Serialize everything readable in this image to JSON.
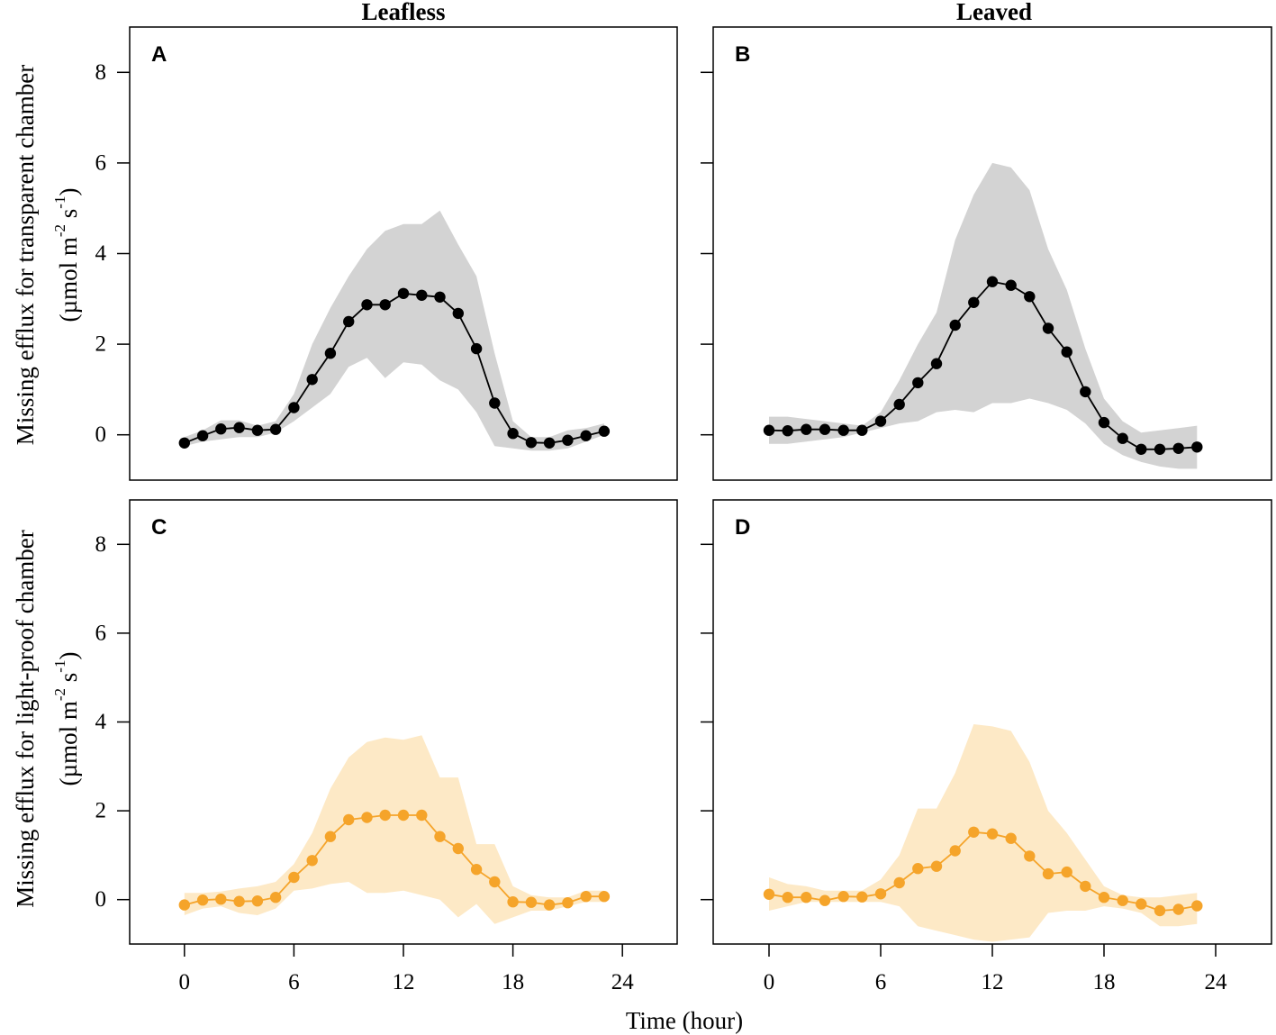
{
  "figure": {
    "col_titles": [
      "Leafless",
      "Leaved"
    ],
    "row_titles": [
      {
        "line1": "Missing efflux for transparent chamber",
        "line2": "(µmol m-2 s-1)"
      },
      {
        "line1": "Missing efflux for light-proof chamber",
        "line2": "(µmol m-2 s-1)"
      }
    ],
    "xlabel": "Time (hour)",
    "colors": {
      "black_series": "#000000",
      "black_band": "#d3d3d3",
      "orange_series": "#f5a42a",
      "orange_band": "#fde9c6"
    }
  },
  "chart_data": [
    {
      "type": "line",
      "panel": "A",
      "title": "Leafless",
      "ylabel": "Missing efflux for transparent chamber (µmol m-2 s-1)",
      "xlabel": "",
      "xlim": [
        -3,
        27
      ],
      "ylim": [
        -1,
        9
      ],
      "xticks": [
        0,
        6,
        12,
        18,
        24
      ],
      "yticks": [
        0,
        2,
        4,
        6,
        8
      ],
      "series": [
        {
          "name": "mean",
          "color": "#000000",
          "x": [
            0,
            1,
            2,
            3,
            4,
            5,
            6,
            7,
            8,
            9,
            10,
            11,
            12,
            13,
            14,
            15,
            16,
            17,
            18,
            19,
            20,
            21,
            22,
            23
          ],
          "values": [
            -0.18,
            -0.02,
            0.13,
            0.16,
            0.1,
            0.12,
            0.6,
            1.22,
            1.8,
            2.5,
            2.87,
            2.87,
            3.12,
            3.08,
            3.04,
            2.68,
            1.9,
            0.7,
            0.03,
            -0.17,
            -0.18,
            -0.12,
            -0.02,
            0.08
          ],
          "lower": [
            -0.25,
            -0.15,
            -0.1,
            -0.05,
            -0.05,
            0.05,
            0.3,
            0.6,
            0.9,
            1.5,
            1.7,
            1.25,
            1.6,
            1.55,
            1.2,
            1.0,
            0.5,
            -0.25,
            -0.3,
            -0.35,
            -0.35,
            -0.3,
            -0.15,
            0.0
          ],
          "upper": [
            -0.05,
            0.1,
            0.32,
            0.32,
            0.2,
            0.3,
            0.9,
            2.0,
            2.8,
            3.5,
            4.1,
            4.5,
            4.65,
            4.65,
            4.95,
            4.2,
            3.5,
            1.8,
            0.3,
            -0.05,
            -0.05,
            0.1,
            0.15,
            0.25
          ]
        }
      ]
    },
    {
      "type": "line",
      "panel": "B",
      "title": "Leaved",
      "ylabel": "",
      "xlabel": "",
      "xlim": [
        -3,
        27
      ],
      "ylim": [
        -1,
        9
      ],
      "xticks": [
        0,
        6,
        12,
        18,
        24
      ],
      "yticks": [
        0,
        2,
        4,
        6,
        8
      ],
      "series": [
        {
          "name": "mean",
          "color": "#000000",
          "x": [
            0,
            1,
            2,
            3,
            4,
            5,
            6,
            7,
            8,
            9,
            10,
            11,
            12,
            13,
            14,
            15,
            16,
            17,
            18,
            19,
            20,
            21,
            22,
            23
          ],
          "values": [
            0.1,
            0.09,
            0.12,
            0.12,
            0.1,
            0.1,
            0.3,
            0.67,
            1.15,
            1.57,
            2.42,
            2.92,
            3.38,
            3.3,
            3.05,
            2.35,
            1.83,
            0.95,
            0.27,
            -0.08,
            -0.32,
            -0.32,
            -0.3,
            -0.27
          ],
          "lower": [
            -0.2,
            -0.2,
            -0.15,
            -0.1,
            -0.05,
            0.05,
            0.15,
            0.25,
            0.3,
            0.5,
            0.55,
            0.5,
            0.7,
            0.7,
            0.8,
            0.7,
            0.55,
            0.25,
            -0.2,
            -0.45,
            -0.6,
            -0.7,
            -0.75,
            -0.75
          ],
          "upper": [
            0.4,
            0.4,
            0.35,
            0.3,
            0.25,
            0.2,
            0.5,
            1.2,
            2.0,
            2.7,
            4.3,
            5.3,
            6.0,
            5.9,
            5.4,
            4.1,
            3.2,
            1.9,
            0.8,
            0.3,
            0.05,
            0.1,
            0.15,
            0.2
          ]
        }
      ]
    },
    {
      "type": "line",
      "panel": "C",
      "title": "",
      "ylabel": "Missing efflux for light-proof chamber (µmol m-2 s-1)",
      "xlabel": "Time (hour)",
      "xlim": [
        -3,
        27
      ],
      "ylim": [
        -1,
        9
      ],
      "xticks": [
        0,
        6,
        12,
        18,
        24
      ],
      "yticks": [
        0,
        2,
        4,
        6,
        8
      ],
      "series": [
        {
          "name": "mean",
          "color": "#f5a42a",
          "x": [
            0,
            1,
            2,
            3,
            4,
            5,
            6,
            7,
            8,
            9,
            10,
            11,
            12,
            13,
            14,
            15,
            16,
            17,
            18,
            19,
            20,
            21,
            22,
            23
          ],
          "values": [
            -0.12,
            -0.01,
            0.01,
            -0.04,
            -0.03,
            0.05,
            0.5,
            0.88,
            1.42,
            1.8,
            1.85,
            1.9,
            1.9,
            1.9,
            1.42,
            1.15,
            0.68,
            0.4,
            -0.05,
            -0.06,
            -0.12,
            -0.07,
            0.07,
            0.07
          ],
          "lower": [
            -0.35,
            -0.2,
            -0.15,
            -0.3,
            -0.35,
            -0.2,
            0.2,
            0.25,
            0.35,
            0.4,
            0.15,
            0.15,
            0.2,
            0.1,
            0.0,
            -0.4,
            -0.1,
            -0.55,
            -0.4,
            -0.25,
            -0.25,
            -0.15,
            -0.05,
            -0.05
          ],
          "upper": [
            0.15,
            0.15,
            0.18,
            0.25,
            0.3,
            0.4,
            0.8,
            1.5,
            2.5,
            3.2,
            3.55,
            3.65,
            3.6,
            3.7,
            2.75,
            2.75,
            1.25,
            1.25,
            0.3,
            0.1,
            0.05,
            0.05,
            0.2,
            0.2
          ]
        }
      ]
    },
    {
      "type": "line",
      "panel": "D",
      "title": "",
      "ylabel": "",
      "xlabel": "Time (hour)",
      "xlim": [
        -3,
        27
      ],
      "ylim": [
        -1,
        9
      ],
      "xticks": [
        0,
        6,
        12,
        18,
        24
      ],
      "yticks": [
        0,
        2,
        4,
        6,
        8
      ],
      "series": [
        {
          "name": "mean",
          "color": "#f5a42a",
          "x": [
            0,
            1,
            2,
            3,
            4,
            5,
            6,
            7,
            8,
            9,
            10,
            11,
            12,
            13,
            14,
            15,
            16,
            17,
            18,
            19,
            20,
            21,
            22,
            23
          ],
          "values": [
            0.12,
            0.05,
            0.05,
            -0.02,
            0.07,
            0.06,
            0.13,
            0.38,
            0.7,
            0.75,
            1.1,
            1.52,
            1.48,
            1.38,
            0.98,
            0.58,
            0.62,
            0.3,
            0.05,
            -0.02,
            -0.1,
            -0.25,
            -0.22,
            -0.14
          ],
          "lower": [
            -0.25,
            -0.15,
            -0.05,
            -0.05,
            -0.05,
            -0.05,
            -0.05,
            -0.15,
            -0.6,
            -0.7,
            -0.8,
            -0.9,
            -0.95,
            -0.9,
            -0.85,
            -0.3,
            -0.25,
            -0.25,
            -0.15,
            -0.2,
            -0.3,
            -0.6,
            -0.6,
            -0.55
          ],
          "upper": [
            0.5,
            0.35,
            0.3,
            0.2,
            0.2,
            0.2,
            0.45,
            1.0,
            2.05,
            2.05,
            2.85,
            3.95,
            3.9,
            3.8,
            3.1,
            2.0,
            1.5,
            0.9,
            0.3,
            0.1,
            0.05,
            0.05,
            0.1,
            0.15
          ]
        }
      ]
    }
  ]
}
